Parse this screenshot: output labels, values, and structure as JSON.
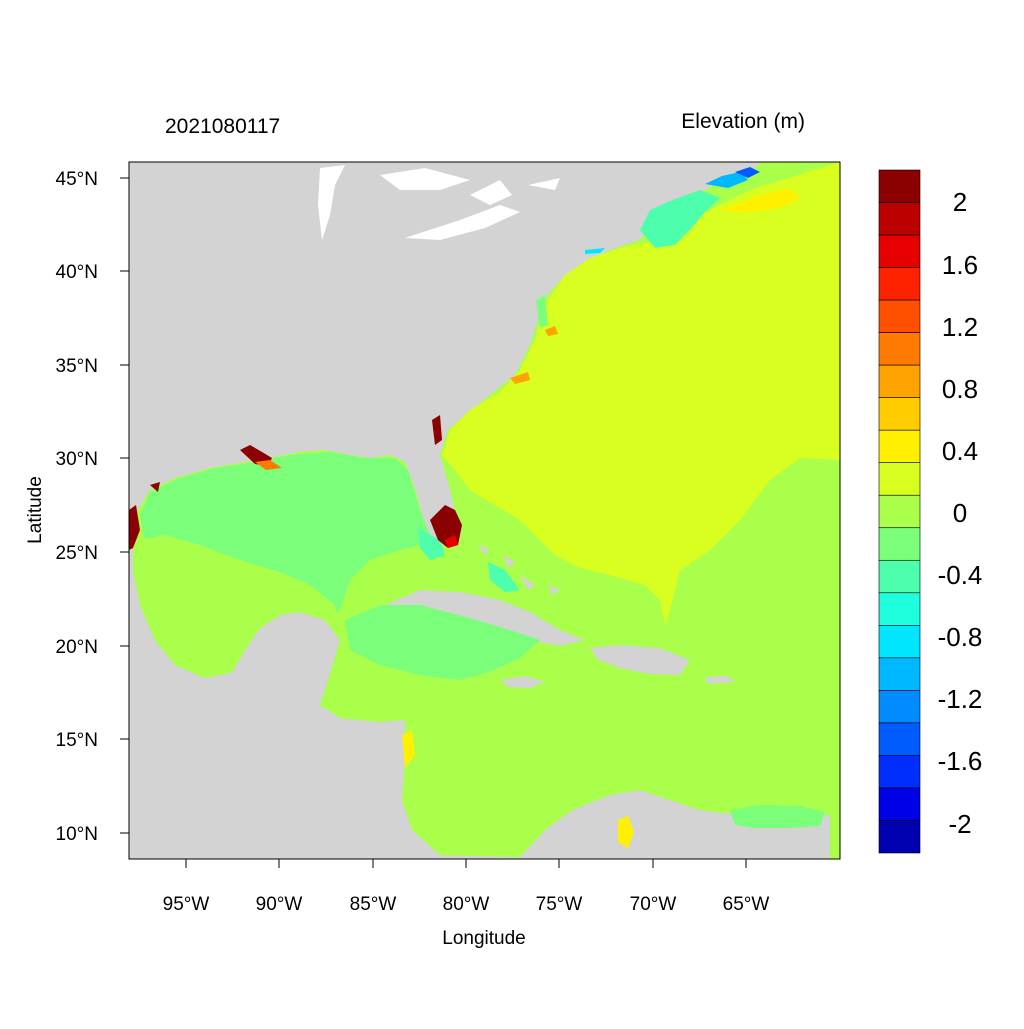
{
  "header": {
    "left_title": "2021080117",
    "right_title": "Elevation (m)"
  },
  "axes": {
    "xlabel": "Longitude",
    "ylabel": "Latitude",
    "x_ticks": [
      "95°W",
      "90°W",
      "85°W",
      "80°W",
      "75°W",
      "70°W",
      "65°W"
    ],
    "y_ticks": [
      "45°N",
      "40°N",
      "35°N",
      "30°N",
      "25°N",
      "20°N",
      "15°N",
      "10°N"
    ]
  },
  "colorbar": {
    "labels": [
      "2",
      "1.6",
      "1.2",
      "0.8",
      "0.4",
      "0",
      "-0.4",
      "-0.8",
      "-1.2",
      "-1.6",
      "-2"
    ],
    "colors": [
      "#8b0000",
      "#bb0000",
      "#e60000",
      "#ff2200",
      "#ff5000",
      "#ff7a00",
      "#ffa300",
      "#ffcd00",
      "#fff000",
      "#d9ff20",
      "#aaff4a",
      "#7bff7b",
      "#4dffad",
      "#20ffdd",
      "#00e6ff",
      "#00b8ff",
      "#008bff",
      "#005cff",
      "#002eff",
      "#0000e6",
      "#0000b0"
    ]
  },
  "chart_data": {
    "type": "heatmap",
    "variable": "Elevation (m)",
    "timestamp": "2021080117",
    "lon_range": [
      -98,
      -60
    ],
    "lat_range": [
      8.5,
      46
    ],
    "color_levels": [
      -2,
      -1.8,
      -1.6,
      -1.4,
      -1.2,
      -1.0,
      -0.8,
      -0.6,
      -0.4,
      -0.2,
      0,
      0.2,
      0.4,
      0.6,
      0.8,
      1.0,
      1.2,
      1.4,
      1.6,
      1.8,
      2.0
    ],
    "land_color": "#d3d3d3",
    "open_atlantic_value_approx": 0.3,
    "gulf_and_caribbean_value_approx": 0.1,
    "south_florida_coast_value_approx": 2.0
  }
}
